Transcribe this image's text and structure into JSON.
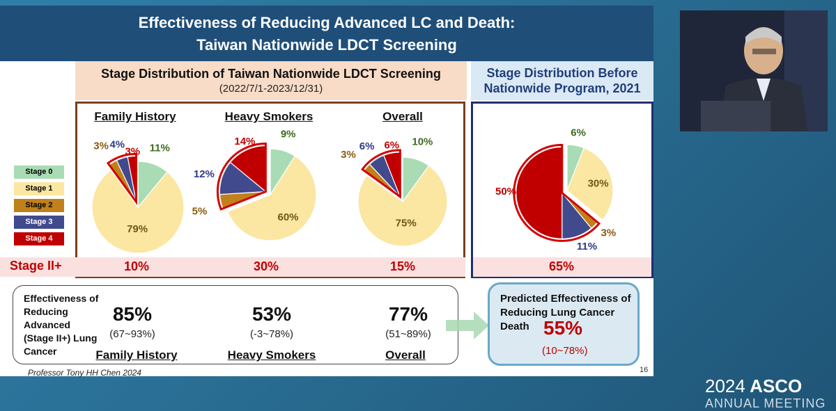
{
  "title": {
    "line1": "Effectiveness of Reducing Advanced LC and Death:",
    "line2": "Taiwan Nationwide LDCT Screening"
  },
  "left_header": {
    "title": "Stage Distribution of Taiwan Nationwide LDCT Screening",
    "subtitle": "(2022/7/1-2023/12/31)"
  },
  "right_header": {
    "line1": "Stage Distribution Before",
    "line2": "Nationwide Program, 2021"
  },
  "legend": [
    "Stage 0",
    "Stage 1",
    "Stage 2",
    "Stage 3",
    "Stage 4"
  ],
  "colors": {
    "stage0": "#a9dcb4",
    "stage1": "#fbe6a2",
    "stage2": "#c0801a",
    "stage3": "#414a8c",
    "stage4": "#c00000"
  },
  "chart_data": [
    {
      "type": "pie",
      "title": "Family History",
      "categories": [
        "Stage 0",
        "Stage 1",
        "Stage 2",
        "Stage 3",
        "Stage 4"
      ],
      "labels": [
        "11%",
        "79%",
        "3%",
        "4%",
        "3%"
      ],
      "values": [
        11,
        79,
        3,
        4,
        3
      ]
    },
    {
      "type": "pie",
      "title": "Heavy Smokers",
      "categories": [
        "Stage 0",
        "Stage 1",
        "Stage 2",
        "Stage 3",
        "Stage 4"
      ],
      "labels": [
        "9%",
        "60%",
        "5%",
        "12%",
        "14%"
      ],
      "values": [
        9,
        60,
        5,
        12,
        14
      ]
    },
    {
      "type": "pie",
      "title": "Overall",
      "categories": [
        "Stage 0",
        "Stage 1",
        "Stage 2",
        "Stage 3",
        "Stage 4"
      ],
      "labels": [
        "10%",
        "75%",
        "3%",
        "6%",
        "6%"
      ],
      "values": [
        10,
        75,
        3,
        6,
        6
      ]
    },
    {
      "type": "pie",
      "title": "",
      "categories": [
        "Stage 0",
        "Stage 1",
        "Stage 2",
        "Stage 3",
        "Stage 4"
      ],
      "labels": [
        "6%",
        "30%",
        "3%",
        "11%",
        "50%"
      ],
      "values": [
        6,
        30,
        3,
        11,
        50
      ]
    }
  ],
  "stage2plus": {
    "label": "Stage II+",
    "values": [
      "10%",
      "30%",
      "15%",
      "65%"
    ]
  },
  "effectiveness": {
    "label": "Effectiveness of Reducing Advanced (Stage II+) Lung Cancer",
    "items": [
      {
        "pct": "85%",
        "ci": "(67~93%)",
        "name": "Family History"
      },
      {
        "pct": "53%",
        "ci": "(-3~78%)",
        "name": "Heavy Smokers"
      },
      {
        "pct": "77%",
        "ci": "(51~89%)",
        "name": "Overall"
      }
    ]
  },
  "predicted": {
    "text": "Predicted Effectiveness of Reducing Lung Cancer Death",
    "pct": "55%",
    "ci": "(10~78%)"
  },
  "footer": "Professor Tony HH Chen 2024",
  "page_number": "16",
  "branding": {
    "year": "2024",
    "name": "ASCO",
    "event": "ANNUAL MEETING"
  }
}
